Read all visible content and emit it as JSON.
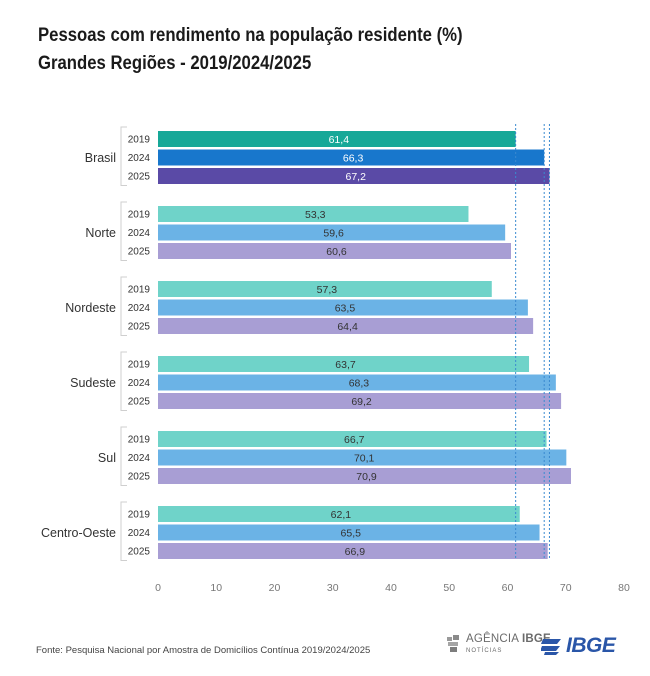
{
  "title": {
    "line1": "Pessoas com rendimento na população residente (%)",
    "line2": "Grandes Regiões - 2019/2024/2025"
  },
  "chart_data": {
    "type": "bar",
    "orientation": "horizontal",
    "categories": [
      "Brasil",
      "Norte",
      "Nordeste",
      "Sudeste",
      "Sul",
      "Centro-Oeste"
    ],
    "series": [
      {
        "name": "2019",
        "values": [
          61.4,
          53.3,
          57.3,
          63.7,
          66.7,
          62.1
        ]
      },
      {
        "name": "2024",
        "values": [
          66.3,
          59.6,
          63.5,
          68.3,
          70.1,
          65.5
        ]
      },
      {
        "name": "2025",
        "values": [
          67.2,
          60.6,
          64.4,
          69.2,
          70.9,
          66.9
        ]
      }
    ],
    "value_labels": [
      [
        "61,4",
        "66,3",
        "67,2"
      ],
      [
        "53,3",
        "59,6",
        "60,6"
      ],
      [
        "57,3",
        "63,5",
        "64,4"
      ],
      [
        "63,7",
        "68,3",
        "69,2"
      ],
      [
        "66,7",
        "70,1",
        "70,9"
      ],
      [
        "62,1",
        "65,5",
        "66,9"
      ]
    ],
    "xlim": [
      0,
      80
    ],
    "xticks": [
      0,
      10,
      20,
      30,
      40,
      50,
      60,
      70,
      80
    ],
    "reference_lines": [
      61.4,
      66.3,
      67.2
    ],
    "colors": {
      "brasil": [
        "#16a898",
        "#1877cc",
        "#5a4aa6"
      ],
      "regions": [
        "#6fd3c9",
        "#6bb3e6",
        "#a89ed4"
      ],
      "label_light": "#ffffff",
      "label_dark": "#333333",
      "reference": "#3a8ad0",
      "axis_text": "#777777"
    }
  },
  "footer": {
    "source": "Fonte: Pesquisa Nacional por Amostra de Domicílios Contínua 2019/2024/2025",
    "agencia_prefix": "AGÊNCIA",
    "agencia_brand": "IBGE",
    "agencia_sub": "NOTÍCIAS",
    "ibge": "IBGE"
  }
}
